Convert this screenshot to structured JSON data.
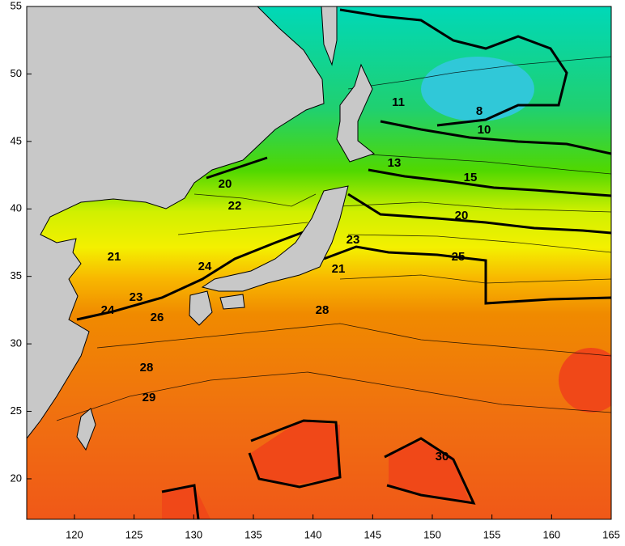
{
  "map": {
    "xlim": [
      116,
      165
    ],
    "ylim": [
      17,
      55
    ],
    "xticks": [
      120,
      125,
      130,
      135,
      140,
      145,
      150,
      155,
      160,
      165
    ],
    "yticks": [
      20,
      25,
      30,
      35,
      40,
      45,
      50,
      55
    ],
    "contour_labels": [
      11,
      8,
      10,
      13,
      15,
      20,
      22,
      20,
      23,
      21,
      25,
      24,
      21,
      23,
      24,
      26,
      28,
      28,
      29,
      30
    ]
  }
}
